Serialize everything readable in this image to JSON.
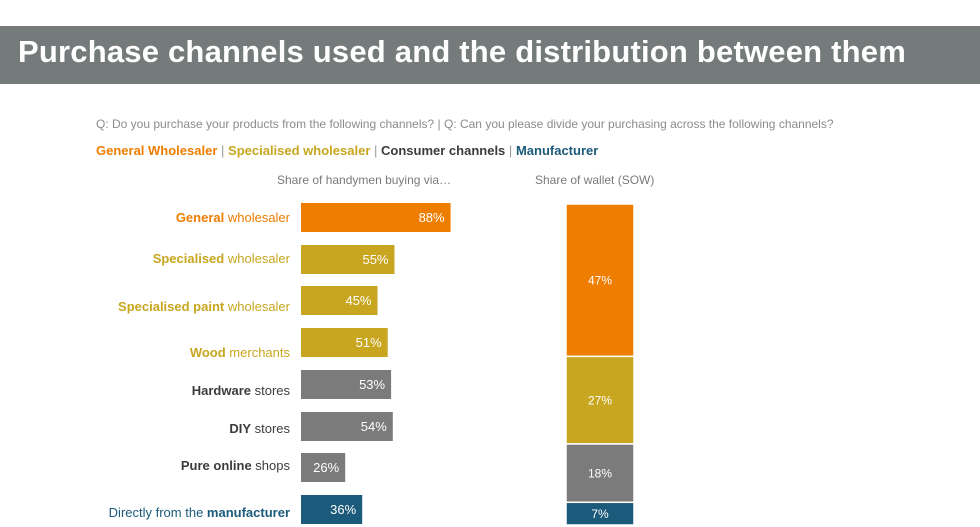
{
  "header": {
    "title": "Purchase channels used and the distribution between them"
  },
  "question": "Q: Do you purchase your products from the following channels? | Q: Can you please divide your purchasing across the following channels?",
  "legend": {
    "items": [
      {
        "label": "General Wholesaler",
        "color": "#ee7d00"
      },
      {
        "label": "Specialised wholesaler",
        "color": "#c8a61f"
      },
      {
        "label": "Consumer channels",
        "color": "#3c3c3c"
      },
      {
        "label": "Manufacturer",
        "color": "#1b5a7a"
      }
    ],
    "separator": "|"
  },
  "colors": {
    "general": "#ee7d00",
    "specialised": "#c8a61f",
    "consumer": "#7b7b7b",
    "consumer_text": "#3c3c3c",
    "manufacturer": "#1b5a7a"
  },
  "chart_data": [
    {
      "type": "bar",
      "orientation": "horizontal",
      "title": "Share of handymen buying via…",
      "categories": [
        {
          "bold": "General",
          "rest": " wholesaler",
          "group": "general"
        },
        {
          "bold": "Specialised",
          "rest": " wholesaler",
          "group": "specialised"
        },
        {
          "bold": "Specialised paint",
          "rest": " wholesaler",
          "group": "specialised"
        },
        {
          "bold": "Wood",
          "rest": " merchants",
          "group": "specialised"
        },
        {
          "bold": "Hardware",
          "rest": " stores",
          "group": "consumer"
        },
        {
          "bold": "DIY",
          "rest": " stores",
          "group": "consumer"
        },
        {
          "bold": "Pure online",
          "rest": " shops",
          "group": "consumer"
        },
        {
          "pre": "Directly from the ",
          "bold": "manufacturer",
          "rest": "",
          "group": "manufacturer"
        }
      ],
      "values": [
        88,
        55,
        45,
        51,
        53,
        54,
        26,
        36
      ],
      "value_labels": [
        "88%",
        "55%",
        "45%",
        "51%",
        "53%",
        "54%",
        "26%",
        "36%"
      ],
      "unit": "%"
    },
    {
      "type": "bar",
      "stacked": true,
      "title": "Share of wallet (SOW)",
      "segments": [
        {
          "group": "general",
          "value": 47,
          "label": "47%"
        },
        {
          "group": "specialised",
          "value": 27,
          "label": "27%"
        },
        {
          "group": "consumer",
          "value": 18,
          "label": "18%"
        },
        {
          "group": "manufacturer",
          "value": 7,
          "label": "7%"
        }
      ],
      "unit": "%"
    }
  ]
}
